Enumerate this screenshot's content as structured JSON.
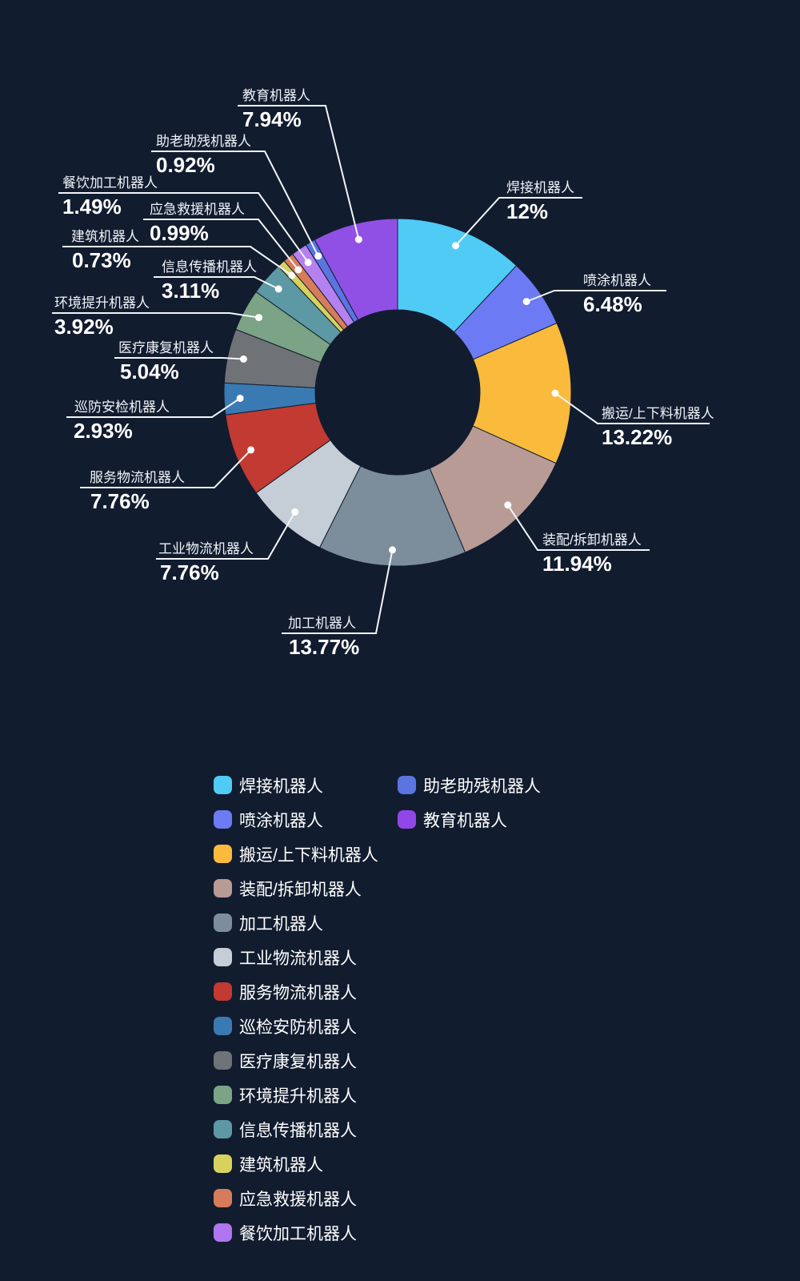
{
  "theme": {
    "background": "#121C2F",
    "label_text_color": "#EFF3F8",
    "value_text_color": "#FFFFFF",
    "leader_line_color": "#F2F5F9"
  },
  "chart_data": {
    "type": "pie",
    "subtype": "donut",
    "start_angle": "12-oclock",
    "direction": "clockwise",
    "unit": "%",
    "title": "",
    "legend_position": "bottom",
    "series": [
      {
        "name": "焊接机器人",
        "value": 12,
        "label": "12%",
        "color": "#4FCBF6"
      },
      {
        "name": "喷涂机器人",
        "value": 6.48,
        "label": "6.48%",
        "color": "#6C7BF4"
      },
      {
        "name": "搬运/上下料机器人",
        "value": 13.22,
        "label": "13.22%",
        "color": "#FABB3C"
      },
      {
        "name": "装配/拆卸机器人",
        "value": 11.94,
        "label": "11.94%",
        "color": "#B89B95"
      },
      {
        "name": "加工机器人",
        "value": 13.77,
        "label": "13.77%",
        "color": "#7C8D9C"
      },
      {
        "name": "工业物流机器人",
        "value": 7.76,
        "label": "7.76%",
        "color": "#C5CDD6"
      },
      {
        "name": "服务物流机器人",
        "value": 7.76,
        "label": "7.76%",
        "color": "#C23A31"
      },
      {
        "name": "巡防安检机器人",
        "value": 2.93,
        "label": "2.93%",
        "color": "#3A7AB3"
      },
      {
        "name": "医疗康复机器人",
        "value": 5.04,
        "label": "5.04%",
        "color": "#6F7378"
      },
      {
        "name": "环境提升机器人",
        "value": 3.92,
        "label": "3.92%",
        "color": "#7BA386"
      },
      {
        "name": "信息传播机器人",
        "value": 3.11,
        "label": "3.11%",
        "color": "#5C99A4"
      },
      {
        "name": "建筑机器人",
        "value": 0.73,
        "label": "0.73%",
        "color": "#D6D25D"
      },
      {
        "name": "应急救援机器人",
        "value": 0.99,
        "label": "0.99%",
        "color": "#D77C5A"
      },
      {
        "name": "餐饮加工机器人",
        "value": 1.49,
        "label": "1.49%",
        "color": "#B580F0"
      },
      {
        "name": "助老助残机器人",
        "value": 0.92,
        "label": "0.92%",
        "color": "#5A75E0"
      },
      {
        "name": "教育机器人",
        "value": 7.94,
        "label": "7.94%",
        "color": "#9150E5"
      }
    ]
  },
  "legend": {
    "columns": [
      {
        "items": [
          {
            "label": "焊接机器人",
            "color": "#4FCBF6"
          },
          {
            "label": "喷涂机器人",
            "color": "#6C7BF4"
          },
          {
            "label": "搬运/上下料机器人",
            "color": "#FABB3C"
          },
          {
            "label": "装配/拆卸机器人",
            "color": "#B89B95"
          },
          {
            "label": "加工机器人",
            "color": "#7C8D9C"
          },
          {
            "label": "工业物流机器人",
            "color": "#C5CDD6"
          },
          {
            "label": "服务物流机器人",
            "color": "#C23A31"
          },
          {
            "label": "巡检安防机器人",
            "color": "#3A7AB3"
          },
          {
            "label": "医疗康复机器人",
            "color": "#6F7378"
          },
          {
            "label": "环境提升机器人",
            "color": "#7BA386"
          },
          {
            "label": "信息传播机器人",
            "color": "#5C99A4"
          },
          {
            "label": "建筑机器人",
            "color": "#D6D25D"
          },
          {
            "label": "应急救援机器人",
            "color": "#D77C5A"
          },
          {
            "label": "餐饮加工机器人",
            "color": "#AF76F0"
          }
        ]
      },
      {
        "items": [
          {
            "label": "助老助残机器人",
            "color": "#5A75E0"
          },
          {
            "label": "教育机器人",
            "color": "#9147E8"
          }
        ]
      }
    ]
  }
}
